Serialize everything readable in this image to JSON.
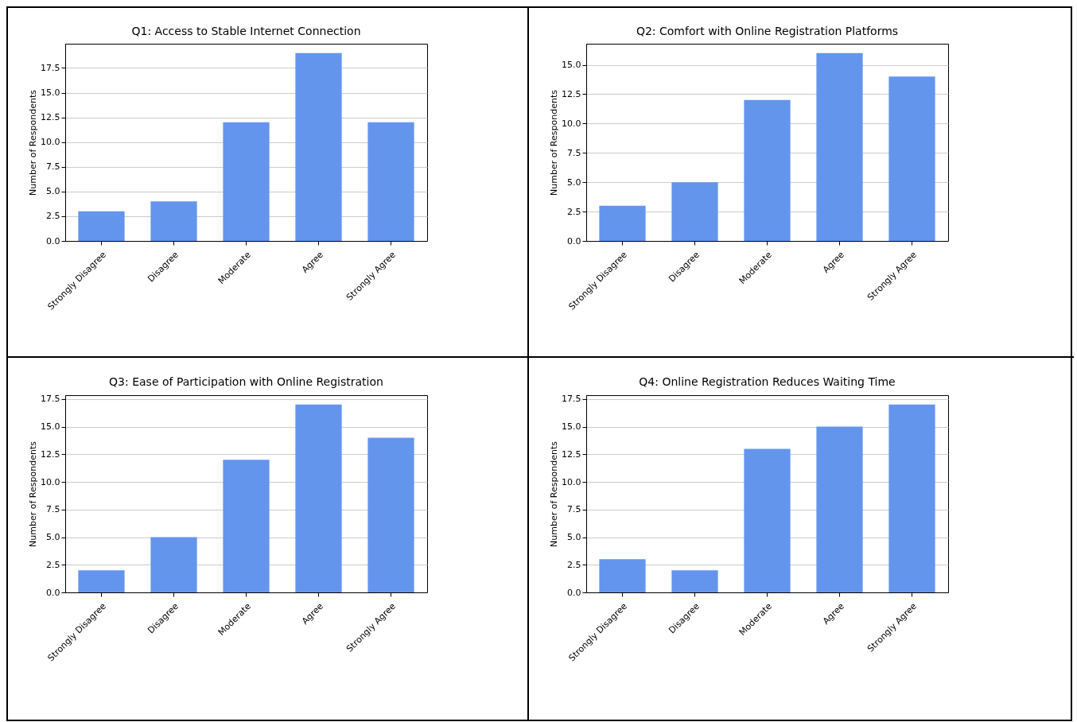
{
  "chart_data": [
    {
      "type": "bar",
      "title": "Q1: Access to Stable Internet Connection",
      "ylabel": "Number of Respondents",
      "categories": [
        "Strongly Disagree",
        "Disagree",
        "Moderate",
        "Agree",
        "Strongly Agree"
      ],
      "values": [
        3,
        4,
        12,
        19,
        12
      ],
      "color": "#6495ed",
      "ylim": [
        0,
        19.95
      ],
      "yticks": [
        {
          "value": 0,
          "label": "0.0"
        },
        {
          "value": 2.5,
          "label": "2.5"
        },
        {
          "value": 5,
          "label": "5.0"
        },
        {
          "value": 7.5,
          "label": "7.5"
        },
        {
          "value": 10,
          "label": "10.0"
        },
        {
          "value": 12.5,
          "label": "12.5"
        },
        {
          "value": 15,
          "label": "15.0"
        },
        {
          "value": 17.5,
          "label": "17.5"
        }
      ],
      "grid": "y"
    },
    {
      "type": "bar",
      "title": "Q2: Comfort with Online Registration Platforms",
      "ylabel": "Number of Respondents",
      "categories": [
        "Strongly Disagree",
        "Disagree",
        "Moderate",
        "Agree",
        "Strongly Agree"
      ],
      "values": [
        3,
        5,
        12,
        16,
        14
      ],
      "color": "#6495ed",
      "ylim": [
        0,
        16.8
      ],
      "yticks": [
        {
          "value": 0,
          "label": "0.0"
        },
        {
          "value": 2.5,
          "label": "2.5"
        },
        {
          "value": 5,
          "label": "5.0"
        },
        {
          "value": 7.5,
          "label": "7.5"
        },
        {
          "value": 10,
          "label": "10.0"
        },
        {
          "value": 12.5,
          "label": "12.5"
        },
        {
          "value": 15,
          "label": "15.0"
        }
      ],
      "grid": "y"
    },
    {
      "type": "bar",
      "title": "Q3: Ease of Participation with Online Registration",
      "ylabel": "Number of Respondents",
      "categories": [
        "Strongly Disagree",
        "Disagree",
        "Moderate",
        "Agree",
        "Strongly Agree"
      ],
      "values": [
        2,
        5,
        12,
        17,
        14
      ],
      "color": "#6495ed",
      "ylim": [
        0,
        17.85
      ],
      "yticks": [
        {
          "value": 0,
          "label": "0.0"
        },
        {
          "value": 2.5,
          "label": "2.5"
        },
        {
          "value": 5,
          "label": "5.0"
        },
        {
          "value": 7.5,
          "label": "7.5"
        },
        {
          "value": 10,
          "label": "10.0"
        },
        {
          "value": 12.5,
          "label": "12.5"
        },
        {
          "value": 15,
          "label": "15.0"
        },
        {
          "value": 17.5,
          "label": "17.5"
        }
      ],
      "grid": "y"
    },
    {
      "type": "bar",
      "title": "Q4: Online Registration Reduces Waiting Time",
      "ylabel": "Number of Respondents",
      "categories": [
        "Strongly Disagree",
        "Disagree",
        "Moderate",
        "Agree",
        "Strongly Agree"
      ],
      "values": [
        3,
        2,
        13,
        15,
        17
      ],
      "color": "#6495ed",
      "ylim": [
        0,
        17.85
      ],
      "yticks": [
        {
          "value": 0,
          "label": "0.0"
        },
        {
          "value": 2.5,
          "label": "2.5"
        },
        {
          "value": 5,
          "label": "5.0"
        },
        {
          "value": 7.5,
          "label": "7.5"
        },
        {
          "value": 10,
          "label": "10.0"
        },
        {
          "value": 12.5,
          "label": "12.5"
        },
        {
          "value": 15,
          "label": "15.0"
        },
        {
          "value": 17.5,
          "label": "17.5"
        }
      ],
      "grid": "y"
    }
  ]
}
